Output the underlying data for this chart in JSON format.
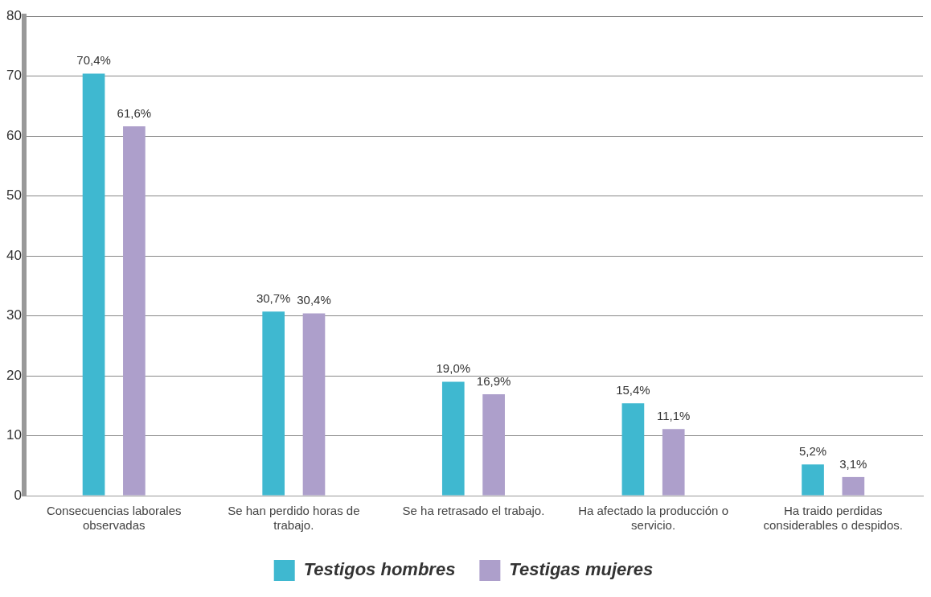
{
  "chart_data": {
    "type": "bar",
    "categories": [
      "Consecuencias laborales observadas",
      "Se han perdido horas de trabajo.",
      "Se ha retrasado el trabajo.",
      "Ha afectado la producción o servicio.",
      "Ha traido perdidas considerables o despidos."
    ],
    "series": [
      {
        "name": "Testigos hombres",
        "color": "#3fb8d0",
        "values": [
          70.4,
          30.7,
          19.0,
          15.4,
          5.2
        ],
        "value_labels": [
          "70,4%",
          "30,7%",
          "19,0%",
          "15,4%",
          "5,2%"
        ]
      },
      {
        "name": "Testigas mujeres",
        "color": "#ad9fcb",
        "values": [
          61.6,
          30.4,
          16.9,
          11.1,
          3.1
        ],
        "value_labels": [
          "61,6%",
          "30,4%",
          "16,9%",
          "11,1%",
          "3,1%"
        ]
      }
    ],
    "ylim": [
      0,
      80
    ],
    "yticks": [
      0,
      10,
      20,
      30,
      40,
      50,
      60,
      70,
      80
    ],
    "grid": "y",
    "legend": "bottom"
  }
}
